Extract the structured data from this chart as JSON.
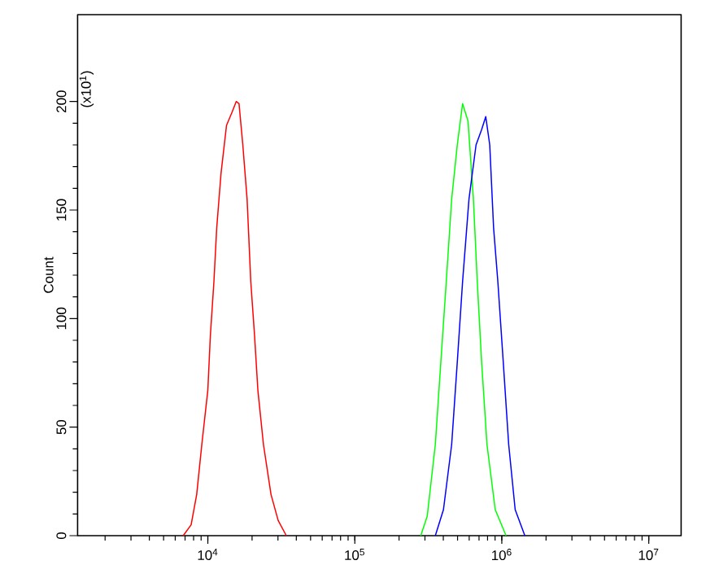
{
  "chart_data": {
    "type": "line",
    "ylabel": "Count",
    "annotations": [
      "(x10$^{1}$)"
    ],
    "log": "x",
    "grid": false,
    "marker": "none",
    "line_style": "solid",
    "xlim": [
      1300,
      16600000
    ],
    "ylim": [
      0,
      240
    ],
    "xticks": [
      {
        "value": 10000,
        "label": "10$^{4}$"
      },
      {
        "value": 100000,
        "label": "10$^{5}$"
      },
      {
        "value": 1000000,
        "label": "10$^{6}$"
      },
      {
        "value": 10000000,
        "label": "10$^{7}$"
      }
    ],
    "yticks": [
      0,
      50,
      100,
      150,
      200
    ],
    "series": [
      {
        "color": "#ff0000",
        "x": [
          6800,
          7700,
          8400,
          9100,
          10000,
          10400,
          11000,
          11500,
          12300,
          13400,
          14600,
          15600,
          16300,
          17300,
          18500,
          19600,
          20800,
          21900,
          23900,
          26900,
          30100,
          34200
        ],
        "values": [
          0,
          5,
          19,
          42,
          67,
          92,
          117,
          142,
          167,
          189,
          195,
          200,
          199,
          180,
          155,
          117,
          92,
          67,
          42,
          19,
          7,
          0
        ]
      },
      {
        "color": "#00ff00",
        "x": [
          281000,
          311000,
          353000,
          385000,
          419000,
          456000,
          498000,
          541000,
          589000,
          641000,
          681000,
          729000,
          793000,
          902000,
          1069000
        ],
        "values": [
          0,
          9,
          42,
          80,
          117,
          155,
          180,
          199,
          191,
          155,
          117,
          80,
          42,
          12,
          0
        ]
      },
      {
        "color": "#0000ff",
        "x": [
          353000,
          401000,
          456000,
          498000,
          541000,
          598000,
          668000,
          729000,
          778000,
          828000,
          879000,
          940000,
          1023000,
          1114000,
          1233000,
          1435000
        ],
        "values": [
          0,
          12,
          42,
          80,
          117,
          155,
          180,
          187,
          193,
          180,
          142,
          117,
          80,
          42,
          12,
          0
        ]
      }
    ]
  }
}
